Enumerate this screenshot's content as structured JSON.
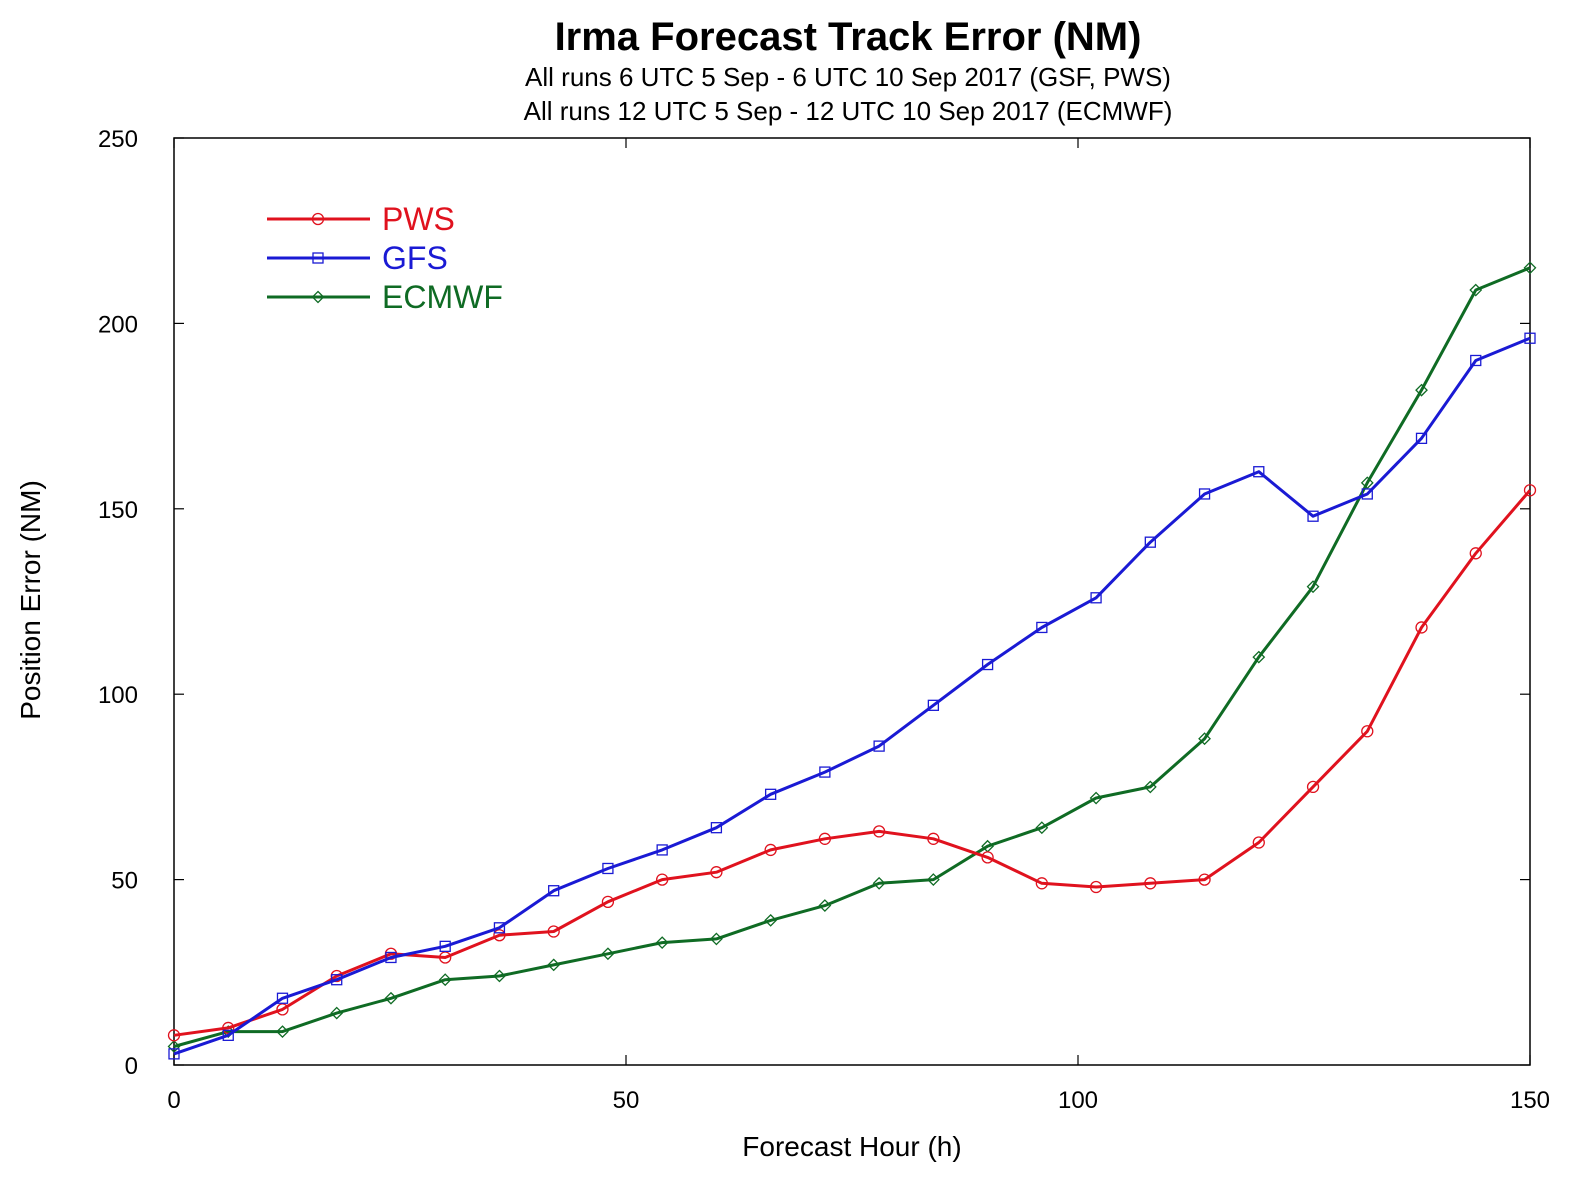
{
  "chart_data": {
    "type": "line",
    "title": "Irma Forecast Track Error (NM)",
    "subtitle_lines": [
      "All runs 6 UTC 5 Sep - 6 UTC 10 Sep 2017 (GSF, PWS)",
      "All runs 12 UTC 5 Sep - 12 UTC 10 Sep 2017 (ECMWF)"
    ],
    "xlabel": "Forecast Hour (h)",
    "ylabel": "Position Error (NM)",
    "xlim": [
      0,
      150
    ],
    "ylim": [
      0,
      250
    ],
    "xticks": [
      0,
      50,
      100,
      150
    ],
    "yticks": [
      0,
      50,
      100,
      150,
      200,
      250
    ],
    "legend_position": "top-left",
    "x": [
      0,
      6,
      12,
      18,
      24,
      30,
      36,
      42,
      48,
      54,
      60,
      66,
      72,
      78,
      84,
      90,
      96,
      102,
      108,
      114,
      120,
      126,
      132,
      138,
      144,
      150
    ],
    "series": [
      {
        "name": "PWS",
        "color": "#e0121e",
        "marker": "circle",
        "values": [
          8,
          10,
          15,
          24,
          30,
          29,
          35,
          36,
          44,
          50,
          52,
          58,
          61,
          63,
          61,
          56,
          49,
          48,
          49,
          50,
          60,
          75,
          90,
          118,
          138,
          155
        ]
      },
      {
        "name": "GFS",
        "color": "#1a1ad4",
        "marker": "square",
        "values": [
          3,
          8,
          18,
          23,
          29,
          32,
          37,
          47,
          53,
          58,
          64,
          73,
          79,
          86,
          97,
          108,
          118,
          126,
          141,
          154,
          160,
          148,
          154,
          169,
          190,
          196
        ]
      },
      {
        "name": "ECMWF",
        "color": "#0f6b24",
        "marker": "diamond",
        "values": [
          5,
          9,
          9,
          14,
          18,
          23,
          24,
          27,
          30,
          33,
          34,
          39,
          43,
          49,
          50,
          59,
          64,
          72,
          75,
          88,
          110,
          129,
          157,
          182,
          209,
          215
        ]
      }
    ]
  }
}
